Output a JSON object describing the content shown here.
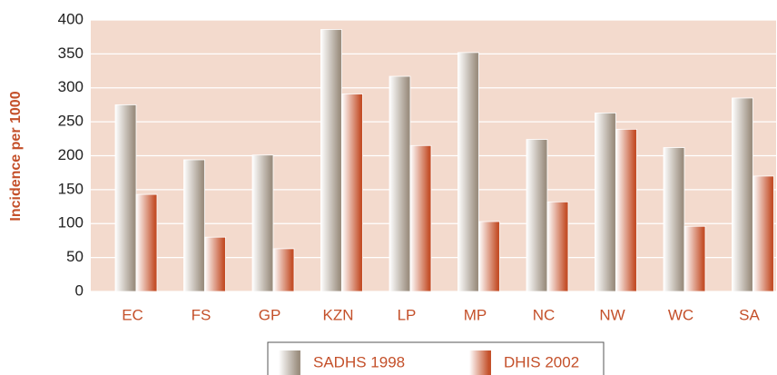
{
  "chart_data": {
    "type": "bar",
    "y_label": "Incidence per 1000",
    "categories": [
      "EC",
      "FS",
      "GP",
      "KZN",
      "LP",
      "MP",
      "NC",
      "NW",
      "WC",
      "SA"
    ],
    "series": [
      {
        "name": "SADHS 1998",
        "color": "#9c8f80",
        "values": [
          275,
          194,
          201,
          386,
          317,
          352,
          224,
          263,
          212,
          285
        ]
      },
      {
        "name": "DHIS 2002",
        "color": "#c4502a",
        "values": [
          143,
          80,
          63,
          291,
          215,
          103,
          132,
          239,
          96,
          170
        ]
      }
    ],
    "ylim": [
      0,
      400
    ],
    "yticks": [
      0,
      50,
      100,
      150,
      200,
      250,
      300,
      350,
      400
    ],
    "grid": true,
    "legend": "bottom"
  }
}
